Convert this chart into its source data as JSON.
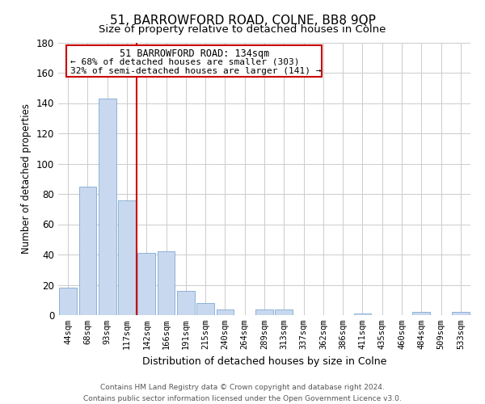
{
  "title": "51, BARROWFORD ROAD, COLNE, BB8 9QP",
  "subtitle": "Size of property relative to detached houses in Colne",
  "xlabel": "Distribution of detached houses by size in Colne",
  "ylabel": "Number of detached properties",
  "bar_labels": [
    "44sqm",
    "68sqm",
    "93sqm",
    "117sqm",
    "142sqm",
    "166sqm",
    "191sqm",
    "215sqm",
    "240sqm",
    "264sqm",
    "289sqm",
    "313sqm",
    "337sqm",
    "362sqm",
    "386sqm",
    "411sqm",
    "435sqm",
    "460sqm",
    "484sqm",
    "509sqm",
    "533sqm"
  ],
  "bar_values": [
    18,
    85,
    143,
    76,
    41,
    42,
    16,
    8,
    4,
    0,
    4,
    4,
    0,
    0,
    0,
    1,
    0,
    0,
    2,
    0,
    2
  ],
  "bar_color": "#c8d8ee",
  "bar_edge_color": "#7faad4",
  "vline_color": "#cc0000",
  "ylim": [
    0,
    180
  ],
  "yticks": [
    0,
    20,
    40,
    60,
    80,
    100,
    120,
    140,
    160,
    180
  ],
  "annotation_title": "51 BARROWFORD ROAD: 134sqm",
  "annotation_line1": "← 68% of detached houses are smaller (303)",
  "annotation_line2": "32% of semi-detached houses are larger (141) →",
  "footer1": "Contains HM Land Registry data © Crown copyright and database right 2024.",
  "footer2": "Contains public sector information licensed under the Open Government Licence v3.0.",
  "background_color": "#ffffff",
  "grid_color": "#cccccc"
}
